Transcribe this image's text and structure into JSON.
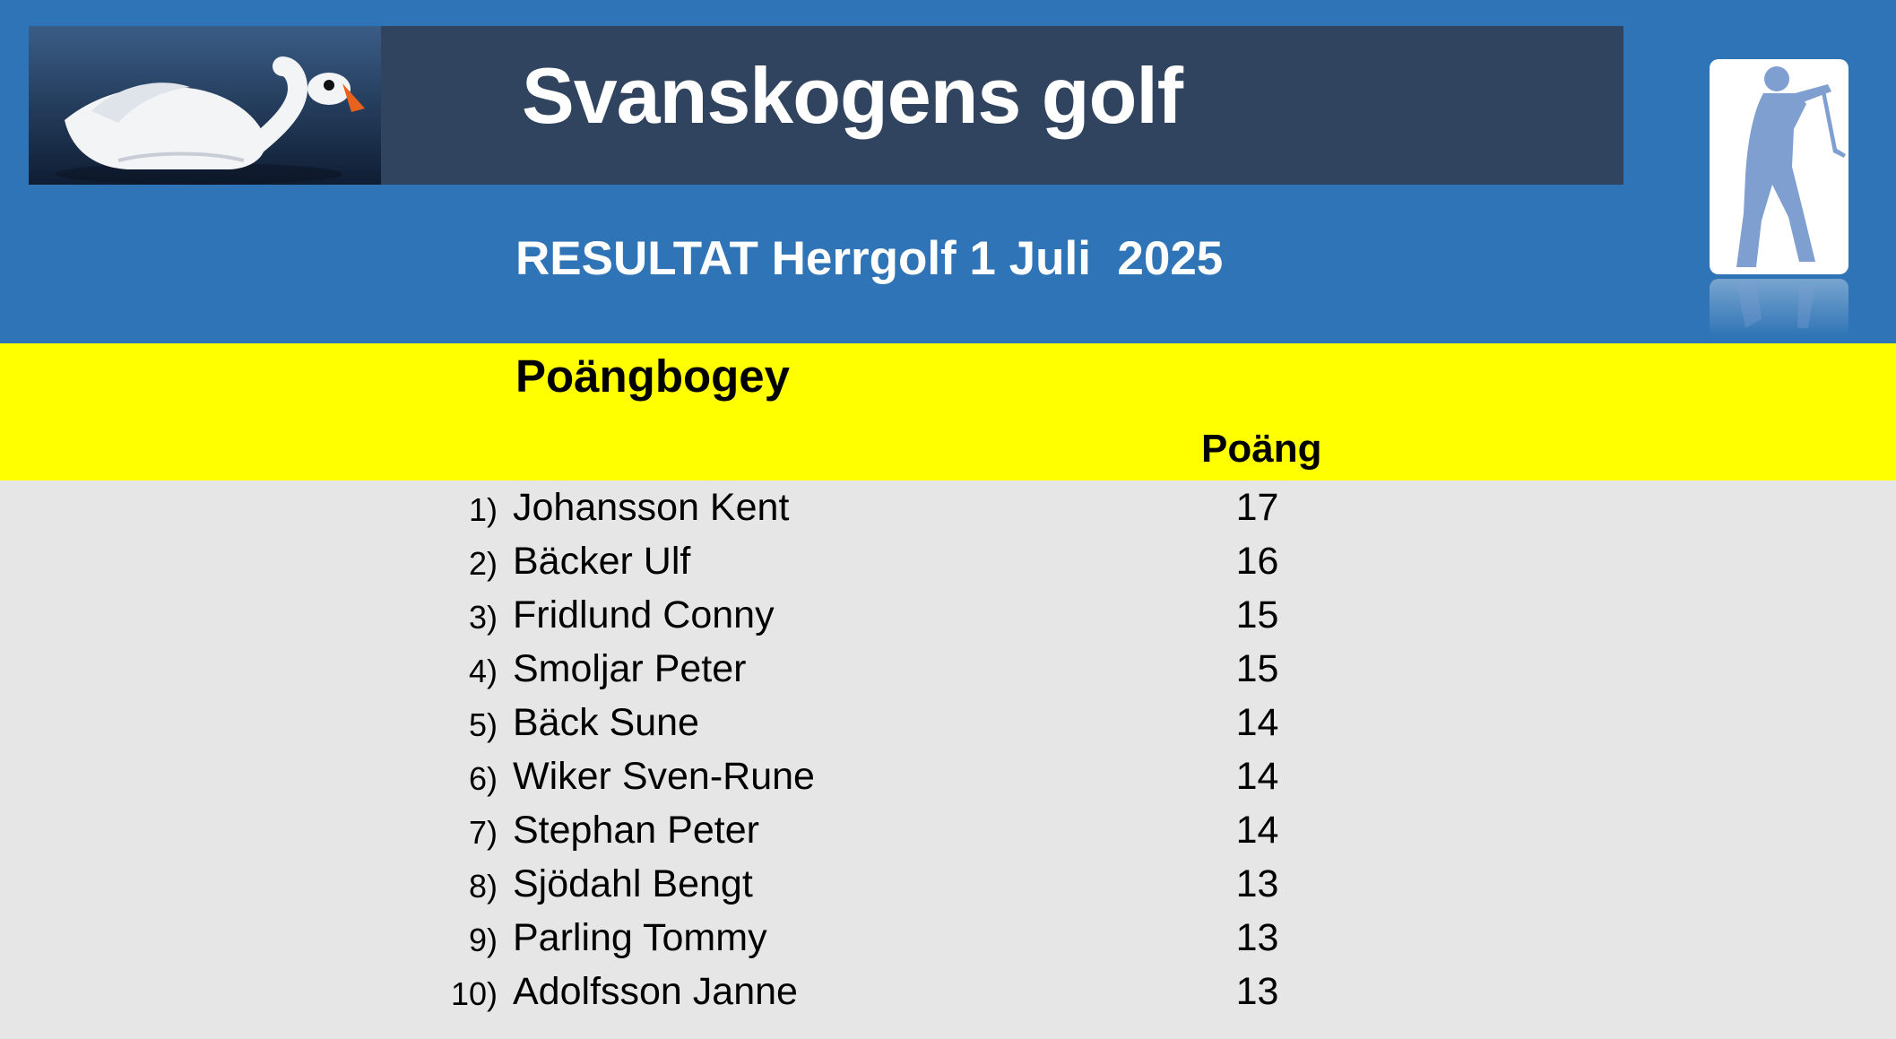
{
  "header": {
    "club_name": "Svanskogens golf",
    "result_title": "RESULTAT Herrgolf 1 Juli  2025"
  },
  "section": {
    "title": "Poängbogey",
    "points_header": "Poäng"
  },
  "results": [
    {
      "rank": "1)",
      "name": "Johansson Kent",
      "points": "17"
    },
    {
      "rank": "2)",
      "name": "Bäcker Ulf",
      "points": "16"
    },
    {
      "rank": "3)",
      "name": "Fridlund Conny",
      "points": "15"
    },
    {
      "rank": "4)",
      "name": "Smoljar Peter",
      "points": "15"
    },
    {
      "rank": "5)",
      "name": "Bäck Sune",
      "points": "14"
    },
    {
      "rank": "6)",
      "name": "Wiker Sven-Rune",
      "points": "14"
    },
    {
      "rank": "7)",
      "name": "Stephan Peter",
      "points": "14"
    },
    {
      "rank": "8)",
      "name": "Sjödahl Bengt",
      "points": "13"
    },
    {
      "rank": "9)",
      "name": "Parling Tommy",
      "points": "13"
    },
    {
      "rank": "10)",
      "name": "Adolfsson Janne",
      "points": "13"
    }
  ],
  "icons": {
    "swan": "swan-photo",
    "golfer": "golfer-icon"
  },
  "colors": {
    "header_blue": "#2f74b6",
    "title_band": "#30445f",
    "highlight_yellow": "#ffff00",
    "table_background": "#e6e6e6"
  }
}
